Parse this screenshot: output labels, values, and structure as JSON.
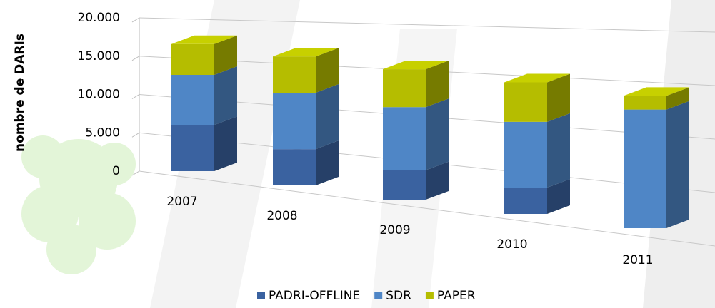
{
  "chart_data": {
    "type": "bar",
    "stacked": true,
    "y_label": "nombre de DARIs",
    "categories": [
      "2007",
      "2008",
      "2009",
      "2010",
      "2011"
    ],
    "series": [
      {
        "name": "PADRI-OFFLINE",
        "color": "#3a62a0",
        "values": [
          6000,
          4500,
          3500,
          3000,
          0
        ]
      },
      {
        "name": "SDR",
        "color": "#4f86c6",
        "values": [
          6500,
          7000,
          7500,
          7500,
          13000
        ]
      },
      {
        "name": "PAPER",
        "color": "#b5bd00",
        "values": [
          4000,
          4500,
          4500,
          4500,
          1500
        ]
      }
    ],
    "ylim": [
      0,
      20000
    ],
    "yticks": [
      0,
      {
        "value": 5000,
        "label": "5.000"
      },
      {
        "value": 10000,
        "label": "10.000"
      },
      {
        "value": 15000,
        "label": "15.000"
      },
      {
        "value": 20000,
        "label": "20.000"
      }
    ],
    "grid": true,
    "legend": "bottom"
  }
}
